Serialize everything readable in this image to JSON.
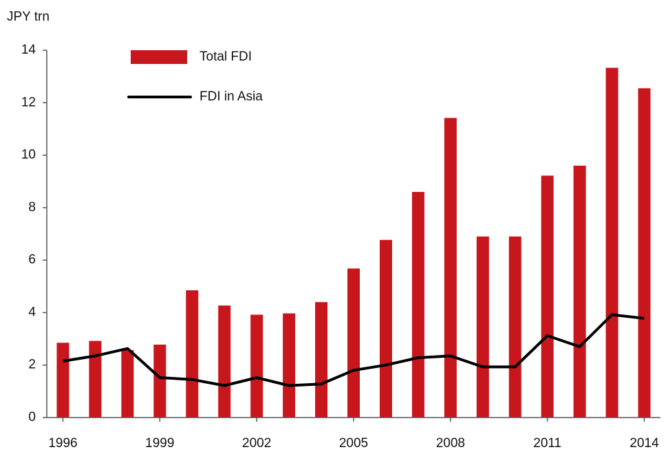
{
  "chart_data": {
    "type": "bar",
    "y_label": "JPY trn",
    "categories": [
      "1996",
      null,
      null,
      "1999",
      null,
      null,
      "2002",
      null,
      null,
      "2005",
      null,
      null,
      "2008",
      null,
      null,
      "2011",
      null,
      null,
      "2014"
    ],
    "series": [
      {
        "name": "Total FDI",
        "type": "bar",
        "color": "#c8161d",
        "values": [
          2.85,
          2.92,
          2.57,
          2.78,
          4.85,
          4.27,
          3.92,
          3.97,
          4.4,
          5.68,
          6.77,
          8.6,
          11.42,
          6.9,
          6.9,
          9.22,
          9.6,
          13.33,
          12.55
        ]
      },
      {
        "name": "FDI in Asia",
        "type": "line",
        "color": "#000000",
        "values": [
          2.15,
          2.35,
          2.63,
          1.52,
          1.45,
          1.22,
          1.52,
          1.22,
          1.28,
          1.8,
          2.0,
          2.28,
          2.35,
          1.93,
          1.93,
          3.12,
          2.7,
          3.92,
          3.78
        ]
      }
    ],
    "ylim": [
      0,
      14
    ],
    "yticks": [
      0,
      2,
      4,
      6,
      8,
      10,
      12,
      14
    ],
    "grid": false,
    "legend": "top-left"
  }
}
